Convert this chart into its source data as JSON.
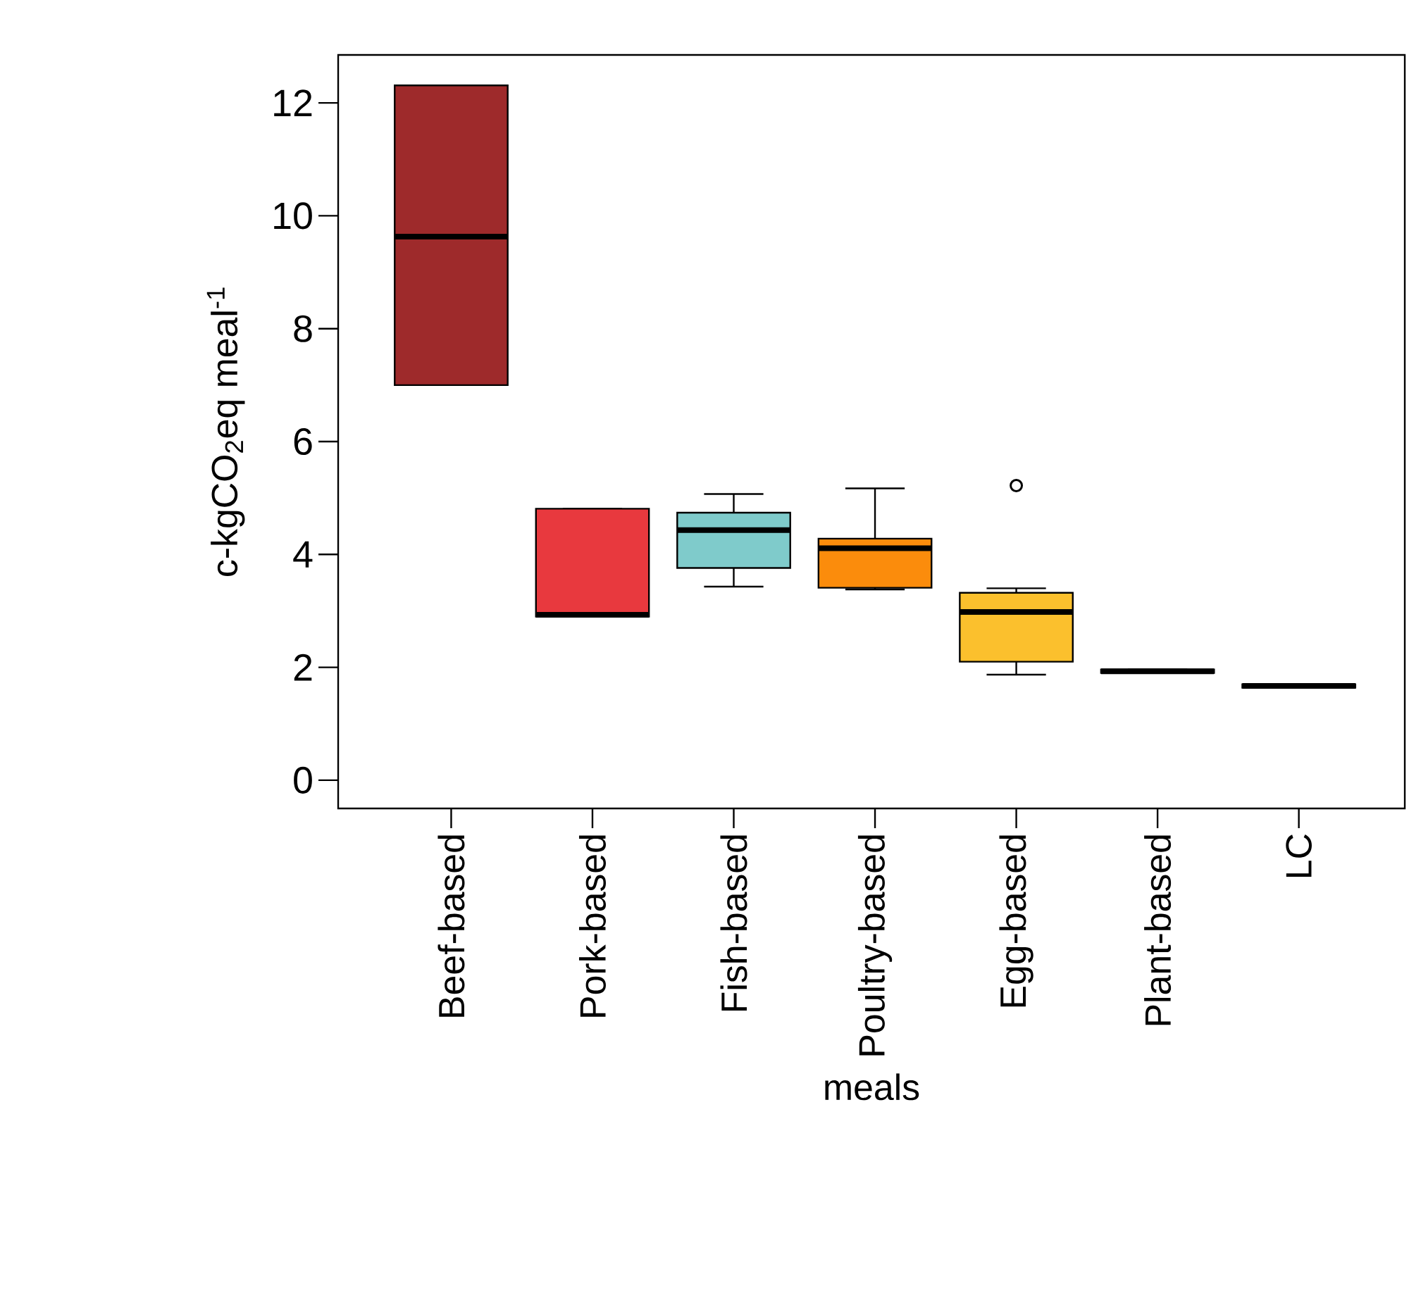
{
  "chart_data": {
    "type": "box",
    "xlabel": "meals",
    "ylabel": "c-kgCO$_{2}$eq meal$^{-1}$",
    "categories": [
      "Beef-based",
      "Pork-based",
      "Fish-based",
      "Poultry-based",
      "Egg-based",
      "Plant-based",
      "LC"
    ],
    "boxes": [
      {
        "low": 7.0,
        "q1": 7.0,
        "median": 9.63,
        "q3": 12.31,
        "high": 12.31
      },
      {
        "low": 2.9,
        "q1": 2.9,
        "median": 2.93,
        "q3": 4.81,
        "high": 4.81
      },
      {
        "low": 3.43,
        "q1": 3.76,
        "median": 4.43,
        "q3": 4.74,
        "high": 5.07
      },
      {
        "low": 3.38,
        "q1": 3.41,
        "median": 4.11,
        "q3": 4.28,
        "high": 5.17
      },
      {
        "low": 1.87,
        "q1": 2.1,
        "median": 2.98,
        "q3": 3.32,
        "high": 3.4,
        "outliers": [
          5.22
        ]
      },
      {
        "low": 1.9,
        "q1": 1.9,
        "median": 1.93,
        "q3": 1.96,
        "high": 1.96
      },
      {
        "low": 1.64,
        "q1": 1.64,
        "median": 1.67,
        "q3": 1.7,
        "high": 1.7
      }
    ],
    "colors": [
      "#9e2a2b",
      "#e8393e",
      "#7fcbcb",
      "#fb8c0c",
      "#fbc02d",
      "#000000",
      "#000000"
    ],
    "ylim": [
      -0.5,
      12.85
    ],
    "yticks": [
      0,
      2,
      4,
      6,
      8,
      10,
      12
    ]
  }
}
